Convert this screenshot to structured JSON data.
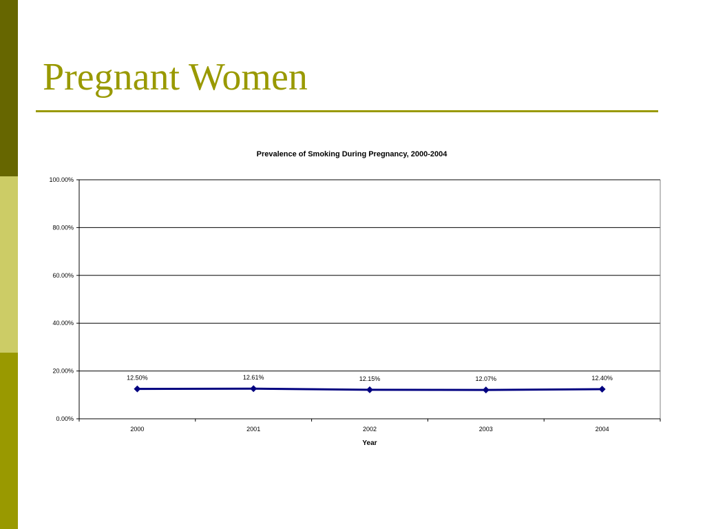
{
  "slide": {
    "title": "Pregnant Women"
  },
  "colors": {
    "title": "#999900",
    "rule": "#999900",
    "side_bar_top": "#666600",
    "side_bar_mid": "#CCCC66",
    "side_bar_bottom": "#999900",
    "series_line": "#000080",
    "gridline": "#000000"
  },
  "chart_data": {
    "type": "line",
    "title": "Prevalence of Smoking During Pregnancy, 2000-2004",
    "xlabel": "Year",
    "ylabel": "",
    "categories": [
      "2000",
      "2001",
      "2002",
      "2003",
      "2004"
    ],
    "series": [
      {
        "values": [
          12.5,
          12.61,
          12.15,
          12.07,
          12.4
        ],
        "data_labels": [
          "12.50%",
          "12.61%",
          "12.15%",
          "12.07%",
          "12.40%"
        ],
        "marker": "diamond"
      }
    ],
    "ylim": [
      0,
      100
    ],
    "yticks": [
      0,
      20,
      40,
      60,
      80,
      100
    ],
    "ytick_labels": [
      "0.00%",
      "20.00%",
      "40.00%",
      "60.00%",
      "80.00%",
      "100.00%"
    ],
    "grid": true,
    "legend": "none"
  }
}
